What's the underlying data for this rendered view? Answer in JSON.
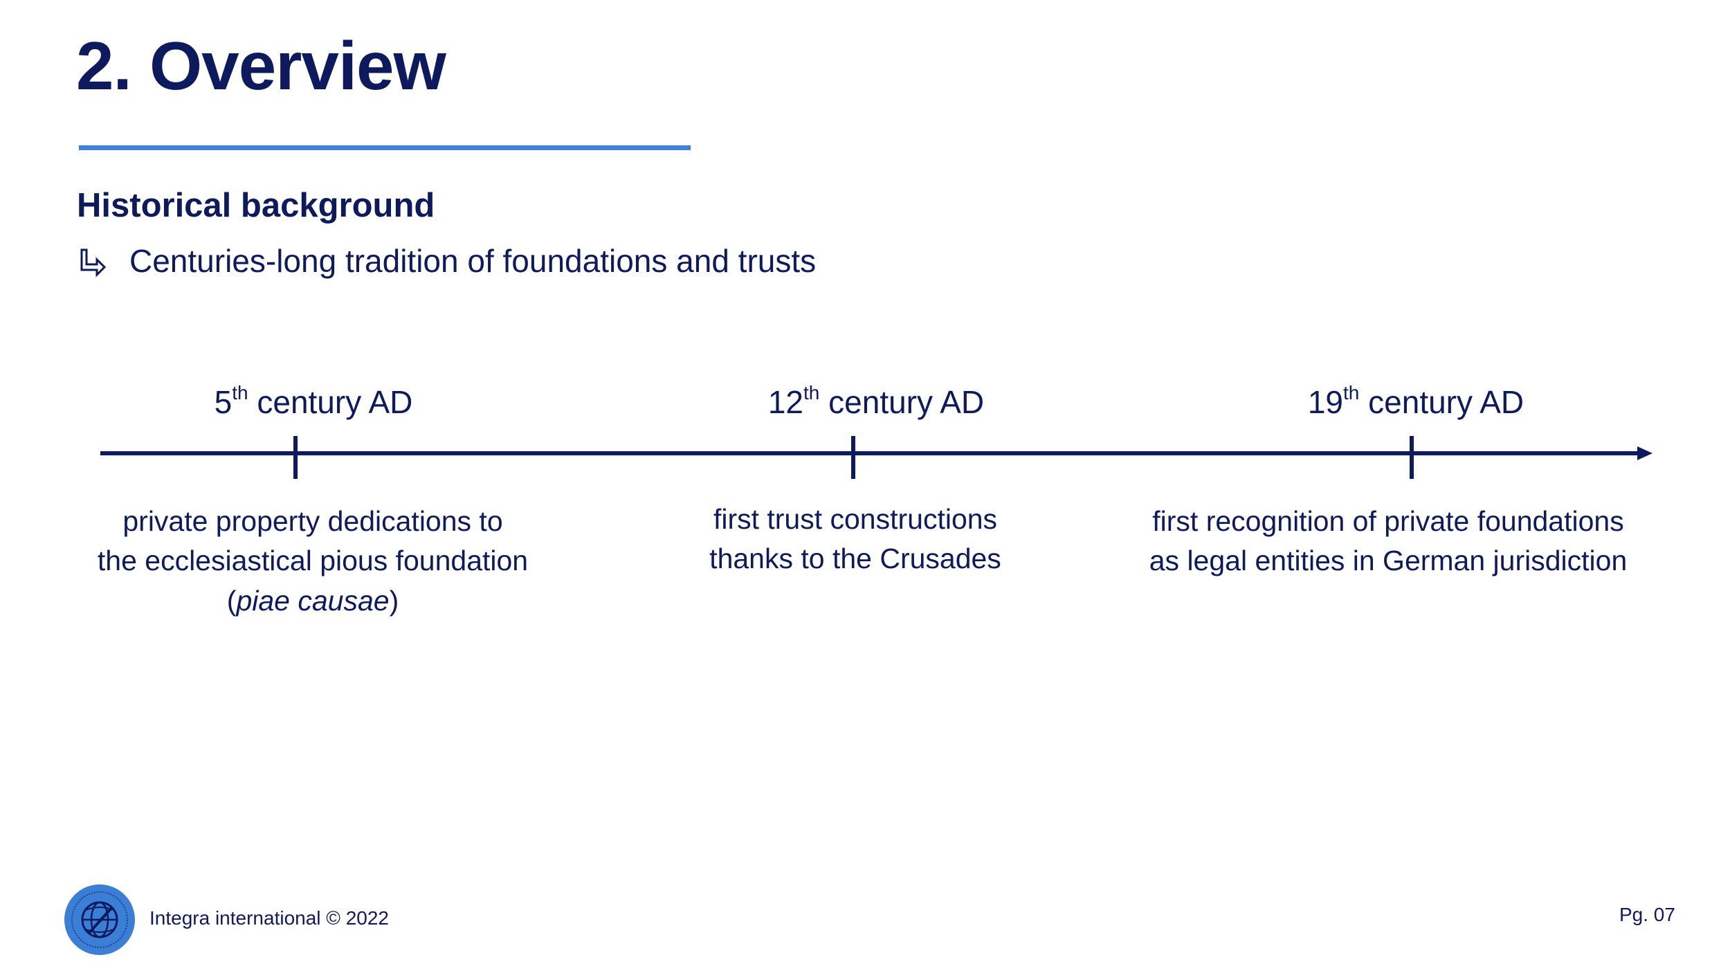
{
  "slide": {
    "title": "2. Overview",
    "subtitle": "Historical background",
    "bullet": "Centuries-long tradition of foundations and trusts"
  },
  "timeline": {
    "events": [
      {
        "label_num": "5",
        "label_sup": "th",
        "label_rest": " century AD",
        "desc_lines": [
          "private property dedications to",
          "the ecclesiastical pious foundation"
        ],
        "desc_paren_open": "(",
        "desc_italic": "piae causae",
        "desc_paren_close": ")"
      },
      {
        "label_num": "12",
        "label_sup": "th",
        "label_rest": " century AD",
        "desc_lines": [
          "first trust constructions",
          "thanks to the Crusades"
        ]
      },
      {
        "label_num": "19",
        "label_sup": "th",
        "label_rest": " century AD",
        "desc_lines": [
          "first recognition of private foundations",
          "as legal entities in German jurisdiction"
        ]
      }
    ]
  },
  "footer": {
    "company": "Integra international ©  2022",
    "page": "Pg. 07",
    "logo_icon": "globe-logo-icon"
  },
  "colors": {
    "primary": "#0d1b5e",
    "accent": "#3f82dc",
    "logo": "#3a7fd5"
  }
}
